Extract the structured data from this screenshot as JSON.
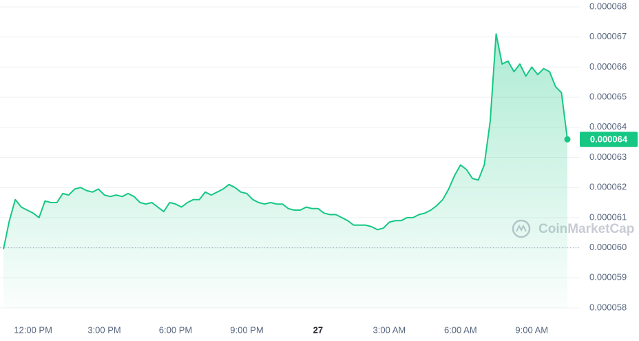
{
  "chart_data": {
    "type": "line",
    "categories": [
      null,
      null,
      null,
      null,
      null,
      "12:00 PM",
      null,
      null,
      null,
      null,
      null,
      null,
      null,
      null,
      null,
      null,
      null,
      "3:00 PM",
      null,
      null,
      null,
      null,
      null,
      null,
      null,
      null,
      null,
      null,
      null,
      "6:00 PM",
      null,
      null,
      null,
      null,
      null,
      null,
      null,
      null,
      null,
      null,
      null,
      "9:00 PM",
      null,
      null,
      null,
      null,
      null,
      null,
      null,
      null,
      null,
      null,
      null,
      "27",
      null,
      null,
      null,
      null,
      null,
      null,
      null,
      null,
      null,
      null,
      null,
      "3:00 AM",
      null,
      null,
      null,
      null,
      null,
      null,
      null,
      null,
      null,
      null,
      null,
      "6:00 AM",
      null,
      null,
      null,
      null,
      null,
      null,
      null,
      null,
      null,
      null,
      null,
      "9:00 AM",
      null,
      null,
      null,
      null,
      null,
      null
    ],
    "series": [
      {
        "color": "#16c784",
        "values": [
          5.995e-05,
          6.09e-05,
          6.16e-05,
          6.135e-05,
          6.125e-05,
          6.115e-05,
          6.1e-05,
          6.155e-05,
          6.15e-05,
          6.15e-05,
          6.18e-05,
          6.175e-05,
          6.195e-05,
          6.2e-05,
          6.19e-05,
          6.185e-05,
          6.195e-05,
          6.175e-05,
          6.17e-05,
          6.175e-05,
          6.17e-05,
          6.18e-05,
          6.17e-05,
          6.15e-05,
          6.145e-05,
          6.15e-05,
          6.135e-05,
          6.12e-05,
          6.15e-05,
          6.145e-05,
          6.135e-05,
          6.15e-05,
          6.16e-05,
          6.16e-05,
          6.185e-05,
          6.175e-05,
          6.185e-05,
          6.195e-05,
          6.21e-05,
          6.2e-05,
          6.185e-05,
          6.18e-05,
          6.16e-05,
          6.15e-05,
          6.145e-05,
          6.15e-05,
          6.145e-05,
          6.145e-05,
          6.13e-05,
          6.125e-05,
          6.125e-05,
          6.135e-05,
          6.13e-05,
          6.13e-05,
          6.115e-05,
          6.11e-05,
          6.11e-05,
          6.1e-05,
          6.09e-05,
          6.075e-05,
          6.075e-05,
          6.075e-05,
          6.07e-05,
          6.06e-05,
          6.065e-05,
          6.085e-05,
          6.09e-05,
          6.09e-05,
          6.1e-05,
          6.1e-05,
          6.11e-05,
          6.115e-05,
          6.125e-05,
          6.14e-05,
          6.16e-05,
          6.195e-05,
          6.24e-05,
          6.275e-05,
          6.26e-05,
          6.23e-05,
          6.225e-05,
          6.275e-05,
          6.42e-05,
          6.71e-05,
          6.61e-05,
          6.62e-05,
          6.585e-05,
          6.61e-05,
          6.57e-05,
          6.6e-05,
          6.575e-05,
          6.595e-05,
          6.585e-05,
          6.535e-05,
          6.515e-05,
          6.36e-05
        ]
      }
    ],
    "last_price": {
      "value": 6.36e-05,
      "label": "0.000064"
    },
    "baseline": 6e-05,
    "ylim": [
      5.8e-05,
      6.8e-05
    ],
    "yticks": [
      5.8e-05,
      5.9e-05,
      {
        "value": 6e-05,
        "label": "0.000060"
      },
      6.1e-05,
      6.2e-05,
      6.3e-05,
      6.4e-05,
      6.5e-05,
      6.6e-05,
      6.7e-05,
      6.8e-05
    ],
    "grid": true,
    "watermark": "CoinMarketCap"
  }
}
